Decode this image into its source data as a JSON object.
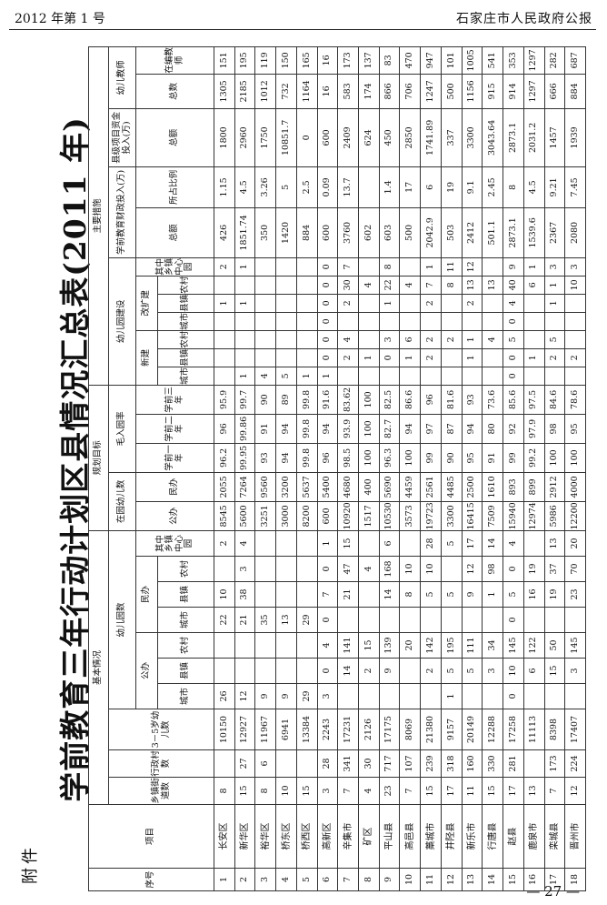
{
  "header": {
    "issue": "2012 年第 1 号",
    "publication": "石家庄市人民政府公报"
  },
  "attachment_label": "附件",
  "title": "学前教育三年行动计划区县情况汇总表(2011 年)",
  "table": {
    "header_rows": [
      [
        "序号",
        "项目",
        "基本情况",
        "规划目标",
        "主要措施"
      ],
      [
        "乡镇街道数",
        "行政村数",
        "3－5岁幼儿数",
        "幼儿园数",
        "在园幼儿数",
        "毛入园率",
        "幼儿园建设",
        "学前教育财政投入(万)",
        "县级项目资金投入(万)",
        "幼儿教师"
      ],
      [
        "公办",
        "民办",
        "其中乡镇中心园",
        "公办",
        "民办",
        "学前一年",
        "学前二年",
        "学前三年",
        "新建",
        "改扩建",
        "其中乡镇中心园",
        "总额",
        "所占比例",
        "总额",
        "总数",
        "在编教师"
      ],
      [
        "城市",
        "县镇",
        "农村",
        "城市",
        "县镇",
        "农村",
        "城市",
        "县镇",
        "农村",
        "城市",
        "县镇",
        "农村"
      ]
    ],
    "rows": [
      [
        "1",
        "长安区",
        "8",
        null,
        "10150",
        "26",
        null,
        null,
        "22",
        "10",
        null,
        "2",
        "8545",
        "2055",
        "96.2",
        "96",
        "95.9",
        null,
        null,
        null,
        null,
        "1",
        null,
        "2",
        "426",
        "1.15",
        "1800",
        "1305",
        "151"
      ],
      [
        "2",
        "新华区",
        "15",
        "27",
        "12927",
        "12",
        null,
        null,
        "21",
        "38",
        "3",
        "4",
        "5600",
        "7264",
        "99.95",
        "99.86",
        "99.7",
        "1",
        null,
        null,
        null,
        "1",
        null,
        "1",
        "1851.74",
        "4.5",
        "2960",
        "2185",
        "195"
      ],
      [
        "3",
        "裕华区",
        "8",
        "6",
        "11967",
        "9",
        null,
        null,
        "35",
        null,
        null,
        null,
        "3251",
        "9560",
        "93",
        "91",
        "90",
        "4",
        null,
        null,
        null,
        null,
        null,
        null,
        "350",
        "3.26",
        "1750",
        "1012",
        "119"
      ],
      [
        "4",
        "桥东区",
        "10",
        null,
        "6941",
        "9",
        null,
        null,
        "13",
        null,
        null,
        null,
        "3000",
        "3200",
        "94",
        "94",
        "89",
        "5",
        null,
        null,
        null,
        null,
        null,
        null,
        "1420",
        "5",
        "10851.7",
        "732",
        "150"
      ],
      [
        "5",
        "桥西区",
        "15",
        null,
        "13384",
        "29",
        null,
        null,
        "29",
        null,
        null,
        null,
        "8200",
        "5637",
        "99.8",
        "99.8",
        "99.8",
        "1",
        null,
        null,
        null,
        null,
        null,
        null,
        "884",
        "2.5",
        "0",
        "1164",
        "165"
      ],
      [
        "6",
        "高新区",
        "3",
        "28",
        "2243",
        "3",
        "0",
        "4",
        "0",
        "7",
        "0",
        "1",
        "600",
        "5400",
        "96",
        "94",
        "91.6",
        "1",
        "0",
        "0",
        "0",
        "0",
        "0",
        "0",
        "600",
        "0.09",
        "600",
        "16",
        "16"
      ],
      [
        "7",
        "辛集市",
        "7",
        "341",
        "17231",
        null,
        "14",
        "141",
        null,
        "21",
        "47",
        "15",
        "10920",
        "4680",
        "98.5",
        "93.9",
        "83.62",
        null,
        "2",
        "4",
        null,
        "2",
        "30",
        "7",
        "3760",
        "13.7",
        "2409",
        "583",
        "173"
      ],
      [
        "8",
        "矿区",
        "4",
        "30",
        "2126",
        null,
        "2",
        "15",
        null,
        null,
        "4",
        null,
        "1517",
        "400",
        "100",
        "100",
        "100",
        null,
        "1",
        null,
        null,
        null,
        "4",
        null,
        "602",
        null,
        "624",
        "174",
        "137"
      ],
      [
        "9",
        "平山县",
        "23",
        "717",
        "17175",
        null,
        "9",
        "139",
        null,
        "14",
        "168",
        "6",
        "10530",
        "5690",
        "96.3",
        "82.7",
        "82.5",
        null,
        "0",
        "3",
        null,
        "1",
        "22",
        "8",
        "603",
        "1.4",
        "450",
        "866",
        "83"
      ],
      [
        "10",
        "高邑县",
        "7",
        "107",
        "8069",
        null,
        null,
        "20",
        null,
        "8",
        "10",
        null,
        "3573",
        "4459",
        "100",
        "94",
        "86.6",
        null,
        "1",
        "6",
        null,
        null,
        "4",
        null,
        "500",
        "17",
        "2850",
        "706",
        "470"
      ],
      [
        "11",
        "藁城市",
        "15",
        "239",
        "21380",
        null,
        "2",
        "142",
        null,
        "5",
        "10",
        "28",
        "19723",
        "2561",
        "99",
        "97",
        "96",
        null,
        "2",
        "2",
        null,
        "2",
        "7",
        "1",
        "2042.9",
        "6",
        "1741.89",
        "1247",
        "947"
      ],
      [
        "12",
        "井陉县",
        "17",
        "318",
        "9157",
        "1",
        "5",
        "195",
        null,
        "5",
        null,
        "5",
        "3300",
        "4485",
        "90",
        "87",
        "81.6",
        null,
        null,
        "2",
        null,
        null,
        "8",
        "11",
        "503",
        "19",
        "337",
        "500",
        "101"
      ],
      [
        "13",
        "新乐市",
        "11",
        "160",
        "20149",
        null,
        "5",
        "111",
        null,
        "9",
        "12",
        "17",
        "16415",
        "2500",
        "95",
        "94",
        "93",
        null,
        "1",
        "1",
        null,
        "2",
        "13",
        "12",
        "2412",
        "9.1",
        "3300",
        "1156",
        "1005"
      ],
      [
        "14",
        "行唐县",
        "15",
        "330",
        "12288",
        null,
        "3",
        "34",
        null,
        "1",
        "98",
        "14",
        "7509",
        "1610",
        "91",
        "80",
        "73.6",
        null,
        null,
        "4",
        null,
        null,
        "13",
        null,
        "501.1",
        "2.45",
        "3043.64",
        "915",
        "541"
      ],
      [
        "15",
        "赵县",
        "17",
        "281",
        "17258",
        "0",
        "10",
        "145",
        "0",
        "5",
        "0",
        "4",
        "15940",
        "893",
        "99",
        "92",
        "85.6",
        "0",
        "0",
        "5",
        "0",
        "4",
        "40",
        "9",
        "2873.1",
        "8",
        "2873.1",
        "914",
        "353"
      ],
      [
        "16",
        "鹿泉市",
        "13",
        null,
        "11113",
        null,
        "6",
        "122",
        null,
        "16",
        "19",
        null,
        "12974",
        "899",
        "99.2",
        "97.9",
        "97.5",
        null,
        "1",
        null,
        null,
        null,
        "6",
        "1",
        "1539.6",
        "4.5",
        "2031.2",
        "1297",
        "1297"
      ],
      [
        "17",
        "栾城县",
        "7",
        "173",
        "8398",
        null,
        "15",
        "50",
        null,
        "19",
        "37",
        "13",
        "5986",
        "2912",
        "100",
        "98",
        "84.6",
        null,
        "2",
        "5",
        null,
        "1",
        "1",
        "3",
        "2367",
        "9.21",
        "1457",
        "666",
        "282"
      ],
      [
        "18",
        "晋州市",
        "12",
        "224",
        "17407",
        null,
        "3",
        "145",
        null,
        "23",
        "70",
        "20",
        "12200",
        "4000",
        "100",
        "95",
        "78.6",
        null,
        "2",
        null,
        null,
        null,
        "10",
        "3",
        "2080",
        "7.45",
        "1939",
        "884",
        "687"
      ]
    ]
  },
  "footer": {
    "page_number": "— 27 —"
  }
}
